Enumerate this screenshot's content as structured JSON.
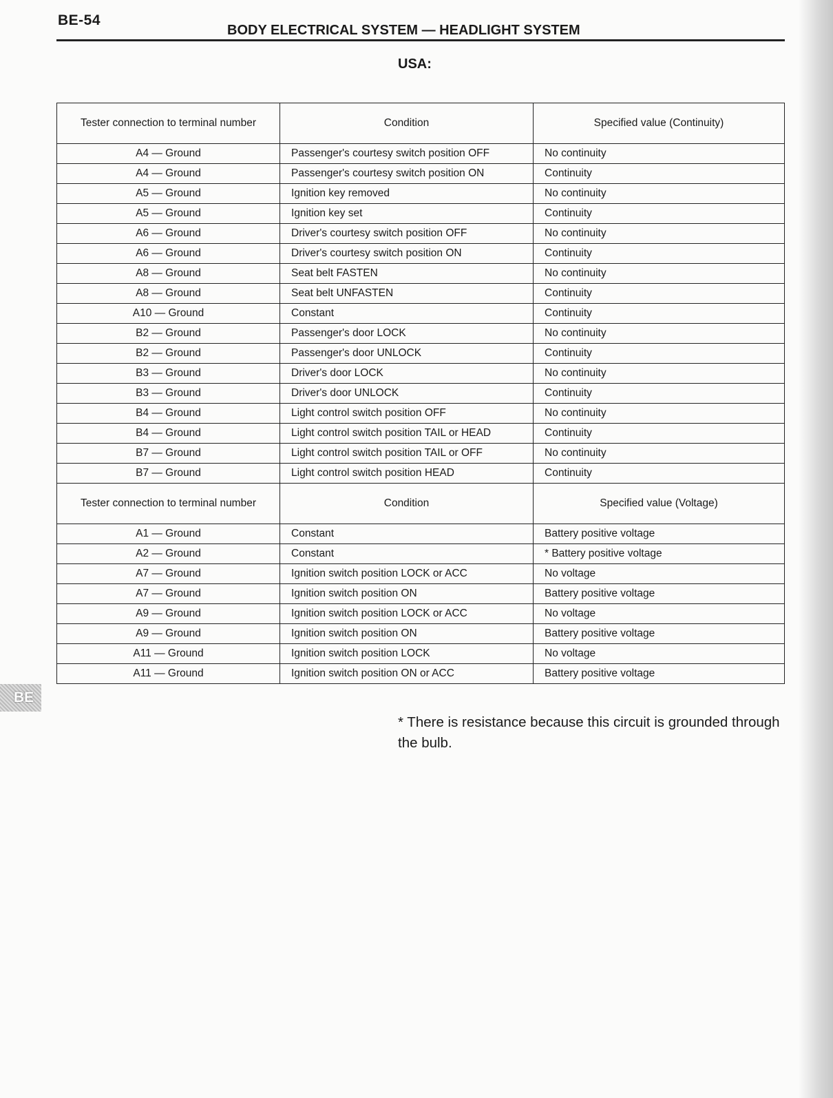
{
  "header": {
    "page_number": "BE-54",
    "title": "BODY ELECTRICAL SYSTEM — HEADLIGHT SYSTEM"
  },
  "section": "USA:",
  "continuity_table": {
    "headers": [
      "Tester connection to terminal number",
      "Condition",
      "Specified value (Continuity)"
    ],
    "rows": [
      [
        "A4 — Ground",
        "Passenger's courtesy switch position OFF",
        "No continuity"
      ],
      [
        "A4 — Ground",
        "Passenger's courtesy switch position ON",
        "Continuity"
      ],
      [
        "A5 — Ground",
        "Ignition key removed",
        "No continuity"
      ],
      [
        "A5 — Ground",
        "Ignition key set",
        "Continuity"
      ],
      [
        "A6 — Ground",
        "Driver's courtesy switch position OFF",
        "No continuity"
      ],
      [
        "A6 — Ground",
        "Driver's courtesy switch position ON",
        "Continuity"
      ],
      [
        "A8 — Ground",
        "Seat belt FASTEN",
        "No continuity"
      ],
      [
        "A8 — Ground",
        "Seat belt UNFASTEN",
        "Continuity"
      ],
      [
        "A10 — Ground",
        "Constant",
        "Continuity"
      ],
      [
        "B2 — Ground",
        "Passenger's door LOCK",
        "No continuity"
      ],
      [
        "B2 — Ground",
        "Passenger's door UNLOCK",
        "Continuity"
      ],
      [
        "B3 — Ground",
        "Driver's door LOCK",
        "No continuity"
      ],
      [
        "B3 — Ground",
        "Driver's door UNLOCK",
        "Continuity"
      ],
      [
        "B4 — Ground",
        "Light control switch position OFF",
        "No continuity"
      ],
      [
        "B4 — Ground",
        "Light control switch position TAIL or HEAD",
        "Continuity"
      ],
      [
        "B7 — Ground",
        "Light control switch position TAIL or OFF",
        "No continuity"
      ],
      [
        "B7 — Ground",
        "Light control switch position HEAD",
        "Continuity"
      ]
    ]
  },
  "voltage_table": {
    "headers": [
      "Tester connection to terminal number",
      "Condition",
      "Specified value (Voltage)"
    ],
    "rows": [
      [
        "A1 — Ground",
        "Constant",
        "Battery positive voltage"
      ],
      [
        "A2 — Ground",
        "Constant",
        "* Battery positive voltage"
      ],
      [
        "A7 — Ground",
        "Ignition switch position LOCK or ACC",
        "No voltage"
      ],
      [
        "A7 — Ground",
        "Ignition switch position ON",
        "Battery positive voltage"
      ],
      [
        "A9 — Ground",
        "Ignition switch position LOCK or ACC",
        "No voltage"
      ],
      [
        "A9 — Ground",
        "Ignition switch position ON",
        "Battery positive voltage"
      ],
      [
        "A11 — Ground",
        "Ignition switch position LOCK",
        "No voltage"
      ],
      [
        "A11 — Ground",
        "Ignition switch position ON or ACC",
        "Battery positive voltage"
      ]
    ]
  },
  "footnote": "* There is resistance because this circuit is grounded through the bulb.",
  "side_tab": "BE"
}
